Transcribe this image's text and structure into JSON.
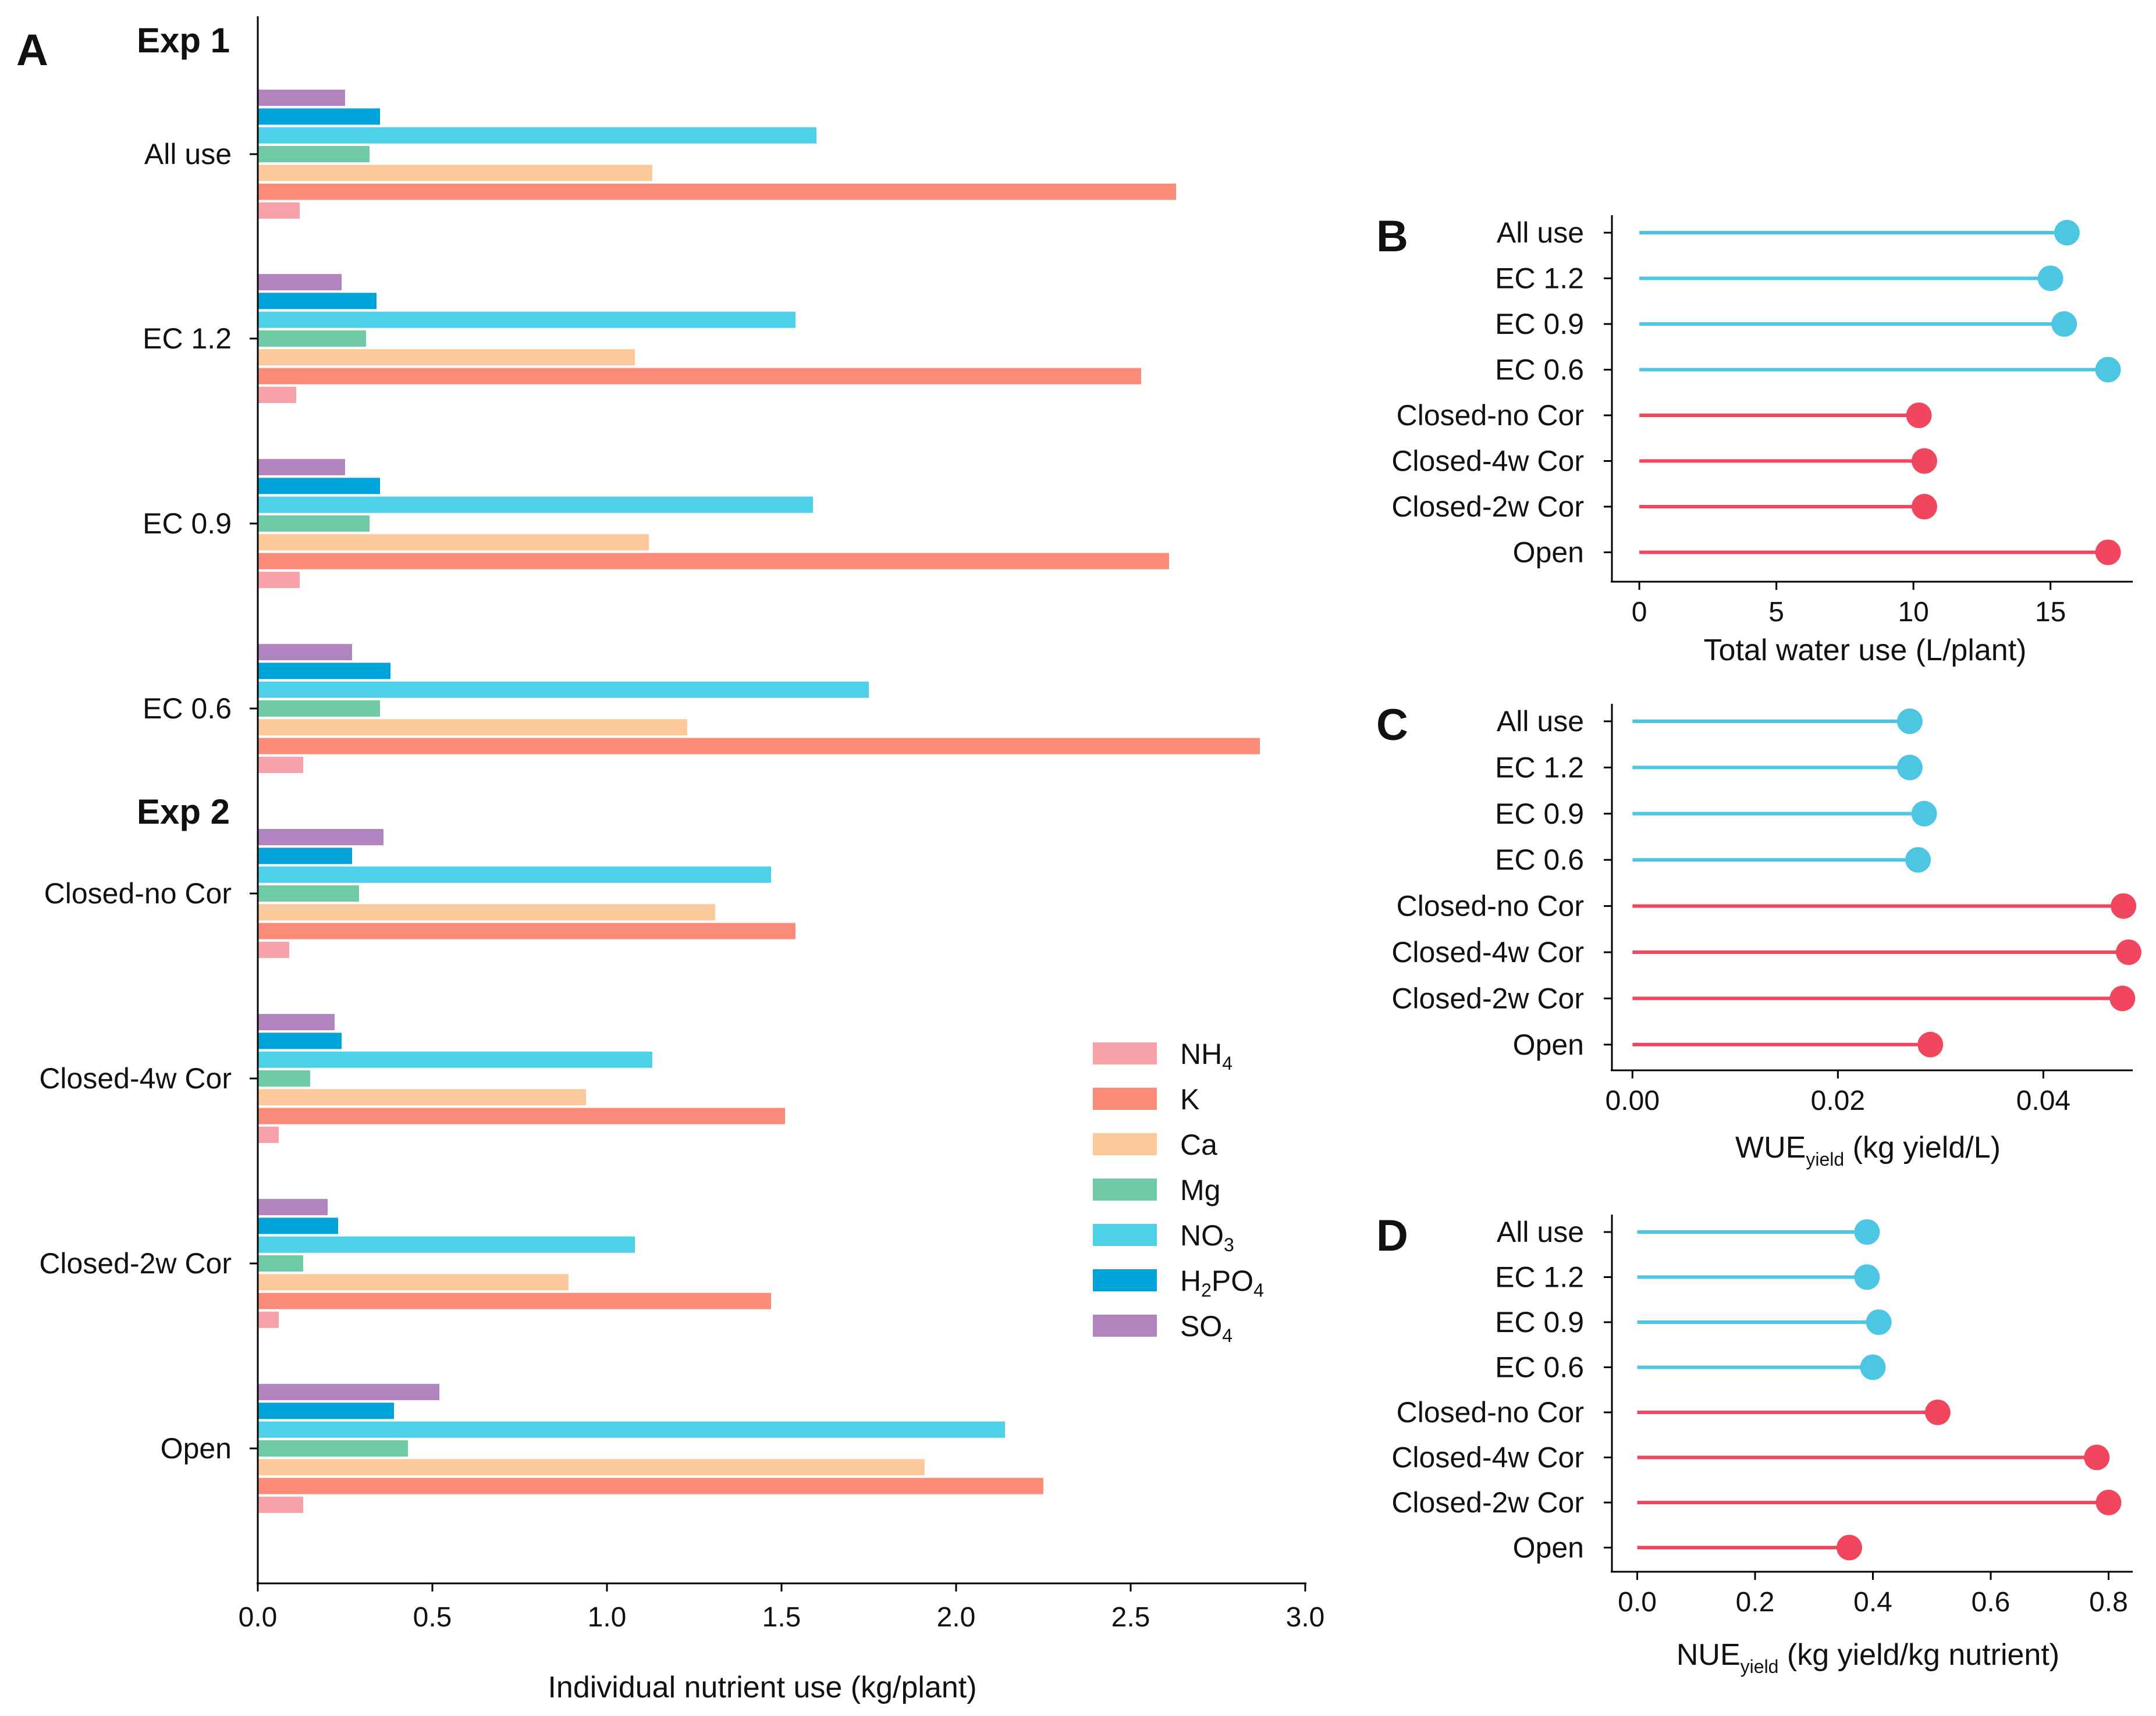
{
  "chart_data": [
    {
      "panel": "A",
      "type": "bar",
      "orientation": "horizontal",
      "title": "",
      "xlabel": "Individual nutrient use (kg/plant)",
      "ylabel": "",
      "xlim": [
        0,
        3.0
      ],
      "xticks": [
        "0.0",
        "0.5",
        "1.0",
        "1.5",
        "2.0",
        "2.5",
        "3.0"
      ],
      "group_headers": [
        {
          "label": "Exp 1",
          "before": "All use"
        },
        {
          "label": "Exp 2",
          "before": "Closed-no Cor"
        }
      ],
      "categories": [
        "All use",
        "EC 1.2",
        "EC 0.9",
        "EC 0.6",
        "Closed-no Cor",
        "Closed-4w Cor",
        "Closed-2w Cor",
        "Open"
      ],
      "series": [
        {
          "name": "NH4",
          "label_main": "NH",
          "label_sub": "4",
          "color": "#F8A1A9",
          "values": [
            0.12,
            0.11,
            0.12,
            0.13,
            0.09,
            0.06,
            0.06,
            0.13
          ]
        },
        {
          "name": "K",
          "label_main": "K",
          "label_sub": "",
          "color": "#FA8B78",
          "values": [
            2.63,
            2.53,
            2.61,
            2.87,
            1.54,
            1.51,
            1.47,
            2.25
          ]
        },
        {
          "name": "Ca",
          "label_main": "Ca",
          "label_sub": "",
          "color": "#FCC99B",
          "values": [
            1.13,
            1.08,
            1.12,
            1.23,
            1.31,
            0.94,
            0.89,
            1.91
          ]
        },
        {
          "name": "Mg",
          "label_main": "Mg",
          "label_sub": "",
          "color": "#6FCBA6",
          "values": [
            0.32,
            0.31,
            0.32,
            0.35,
            0.29,
            0.15,
            0.13,
            0.43
          ]
        },
        {
          "name": "NO3",
          "label_main": "NO",
          "label_sub": "3",
          "color": "#4DD0E8",
          "values": [
            1.6,
            1.54,
            1.59,
            1.75,
            1.47,
            1.13,
            1.08,
            2.14
          ]
        },
        {
          "name": "H2PO4",
          "label_main": "H",
          "label_sub": "2",
          "label_rest": "PO",
          "label_sub2": "4",
          "color": "#00A3D8",
          "values": [
            0.35,
            0.34,
            0.35,
            0.38,
            0.27,
            0.24,
            0.23,
            0.39
          ]
        },
        {
          "name": "SO4",
          "label_main": "SO",
          "label_sub": "4",
          "color": "#B184BF",
          "values": [
            0.25,
            0.24,
            0.25,
            0.27,
            0.36,
            0.22,
            0.2,
            0.52
          ]
        }
      ],
      "legend_position": "lower-right"
    },
    {
      "panel": "B",
      "type": "lollipop",
      "xlabel": "Total water use (L/plant)",
      "xlabel_main": "Total water use (L/plant)",
      "xlabel_sub": "",
      "xlabel_rest": "",
      "xlim": [
        -1,
        18
      ],
      "xticks": [
        0,
        5,
        10,
        15
      ],
      "tick_labels": [
        "0",
        "5",
        "10",
        "15"
      ],
      "categories": [
        "All use",
        "EC 1.2",
        "EC 0.9",
        "EC 0.6",
        "Closed-no Cor",
        "Closed-4w Cor",
        "Closed-2w Cor",
        "Open"
      ],
      "values": [
        15.6,
        15.0,
        15.5,
        17.1,
        10.2,
        10.4,
        10.4,
        17.1
      ]
    },
    {
      "panel": "C",
      "type": "lollipop",
      "xlabel": "WUEyield (kg yield/L)",
      "xlabel_main": "WUE",
      "xlabel_sub": "yield",
      "xlabel_rest": " (kg yield/L)",
      "xlim": [
        -0.002,
        0.0487
      ],
      "xticks": [
        0,
        0.02,
        0.04
      ],
      "tick_labels": [
        "0.00",
        "0.02",
        "0.04"
      ],
      "categories": [
        "All use",
        "EC 1.2",
        "EC 0.9",
        "EC 0.6",
        "Closed-no Cor",
        "Closed-4w Cor",
        "Closed-2w Cor",
        "Open"
      ],
      "values": [
        0.027,
        0.027,
        0.0284,
        0.0278,
        0.0478,
        0.0483,
        0.0477,
        0.029
      ]
    },
    {
      "panel": "D",
      "type": "lollipop",
      "xlabel": "NUEyield (kg yield/kg nutrient)",
      "xlabel_main": "NUE",
      "xlabel_sub": "yield",
      "xlabel_rest": " (kg yield/kg nutrient)",
      "xlim": [
        -0.043,
        0.841
      ],
      "xticks": [
        0,
        0.2,
        0.4,
        0.6,
        0.8
      ],
      "tick_labels": [
        "0.0",
        "0.2",
        "0.4",
        "0.6",
        "0.8"
      ],
      "categories": [
        "All use",
        "EC 1.2",
        "EC 0.9",
        "EC 0.6",
        "Closed-no Cor",
        "Closed-4w Cor",
        "Closed-2w Cor",
        "Open"
      ],
      "values": [
        0.39,
        0.39,
        0.41,
        0.4,
        0.51,
        0.78,
        0.8,
        0.36
      ]
    }
  ],
  "lollipop_colors": {
    "exp1": "#4CC6E2",
    "exp2": "#F0465E"
  }
}
